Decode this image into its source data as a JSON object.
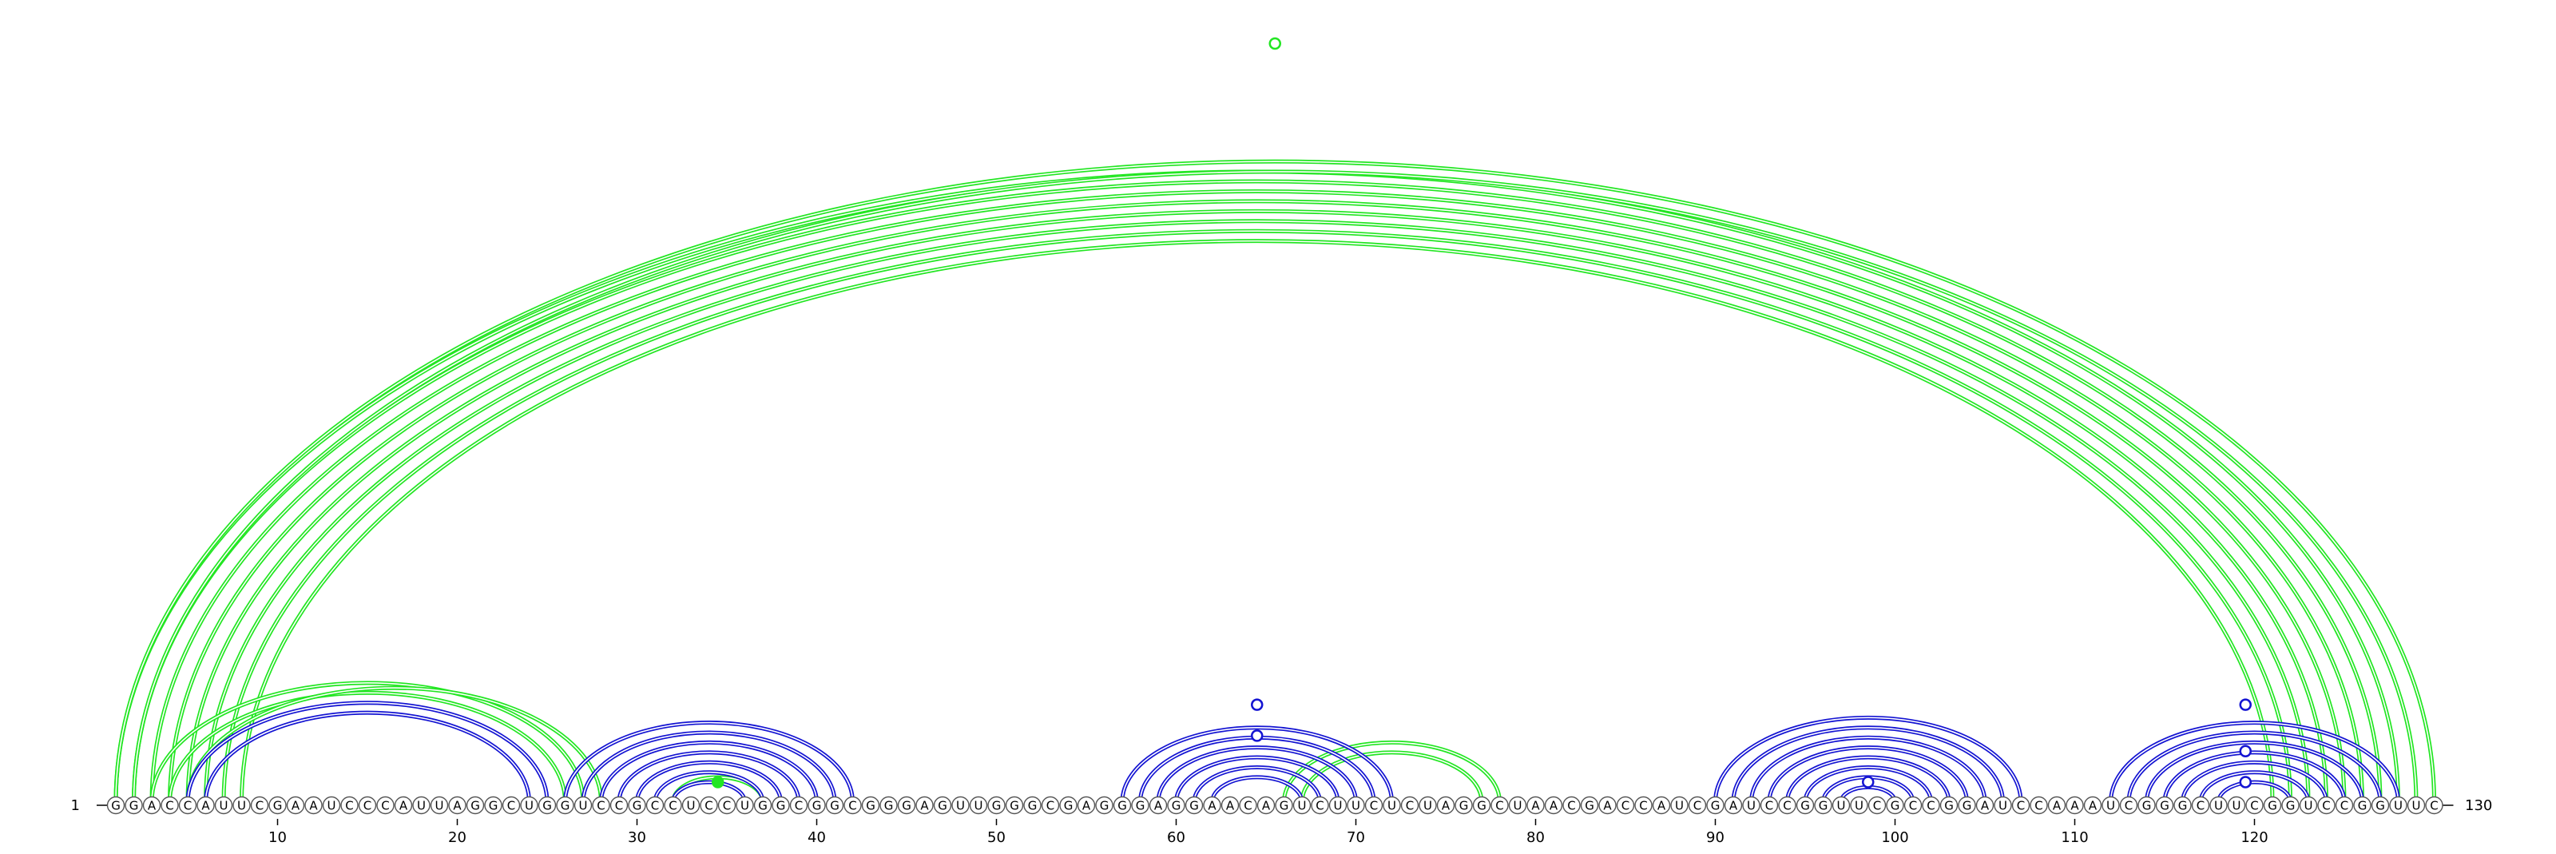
{
  "diagram": {
    "type": "rna-arc-diagram",
    "sequence": "GGACCAUUCGAAUCCCAUUAGGCUGGUCCGCCUCCUGGCGGCGGGAGUUGGGCGAGGGAGGAACAGUCUUCUCUAGGCUAACGACCAUCGAUCCGGUUCGCCGGAUCCAAAUCGGGCUUCGGUCCGGUUC",
    "start_label": "1",
    "end_label": "130",
    "ruler_ticks": [
      10,
      20,
      30,
      40,
      50,
      60,
      70,
      80,
      90,
      100,
      110,
      120
    ],
    "colors": {
      "structure_a": "#1414d2",
      "structure_b": "#22e622",
      "text": "#000000",
      "nucleotide_fill": "#ffffff",
      "nucleotide_stroke": "#555555"
    },
    "arc_groups": [
      {
        "structure": "b",
        "pairs": [
          [
            1,
            128
          ],
          [
            2,
            127
          ],
          [
            3,
            126
          ],
          [
            4,
            125
          ],
          [
            5,
            124
          ],
          [
            6,
            123
          ],
          [
            7,
            122
          ],
          [
            8,
            121
          ]
        ]
      },
      {
        "structure": "b",
        "pairs": [
          [
            1,
            130
          ],
          [
            2,
            129
          ]
        ]
      },
      {
        "structure": "a",
        "pairs": [
          [
            5,
            25
          ],
          [
            6,
            24
          ]
        ]
      },
      {
        "structure": "b",
        "pairs": [
          [
            3,
            27
          ],
          [
            4,
            26
          ],
          [
            5,
            28
          ]
        ]
      },
      {
        "structure": "a",
        "pairs": [
          [
            26,
            42
          ],
          [
            27,
            41
          ],
          [
            28,
            40
          ],
          [
            29,
            39
          ],
          [
            30,
            38
          ],
          [
            31,
            37
          ],
          [
            32,
            36
          ]
        ]
      },
      {
        "structure": "b",
        "pairs": [
          [
            32,
            37
          ]
        ]
      },
      {
        "structure": "a",
        "pairs": [
          [
            57,
            72
          ],
          [
            58,
            71
          ],
          [
            59,
            70
          ],
          [
            60,
            69
          ],
          [
            61,
            68
          ],
          [
            62,
            67
          ]
        ]
      },
      {
        "structure": "b",
        "pairs": [
          [
            66,
            78
          ],
          [
            67,
            77
          ]
        ]
      },
      {
        "structure": "a",
        "pairs": [
          [
            90,
            107
          ],
          [
            91,
            106
          ],
          [
            92,
            105
          ],
          [
            93,
            104
          ],
          [
            94,
            103
          ],
          [
            95,
            102
          ],
          [
            96,
            101
          ],
          [
            97,
            100
          ]
        ]
      },
      {
        "structure": "a",
        "pairs": [
          [
            112,
            128
          ],
          [
            113,
            127
          ],
          [
            114,
            126
          ],
          [
            115,
            125
          ],
          [
            116,
            124
          ],
          [
            117,
            123
          ],
          [
            118,
            122
          ]
        ]
      }
    ],
    "markers": [
      {
        "structure": "b",
        "at": 65.5,
        "y_fraction": 0.985,
        "filled": false
      },
      {
        "structure": "b",
        "at": 34.5,
        "y_fraction": 0.03,
        "filled": true
      },
      {
        "structure": "a",
        "at": 64.5,
        "y_fraction": 0.13,
        "filled": false
      },
      {
        "structure": "a",
        "at": 64.5,
        "y_fraction": 0.09,
        "filled": false
      },
      {
        "structure": "a",
        "at": 98.5,
        "y_fraction": 0.03,
        "filled": false
      },
      {
        "structure": "a",
        "at": 119.5,
        "y_fraction": 0.13,
        "filled": false
      },
      {
        "structure": "a",
        "at": 119.5,
        "y_fraction": 0.07,
        "filled": false
      },
      {
        "structure": "a",
        "at": 119.5,
        "y_fraction": 0.03,
        "filled": false
      }
    ]
  }
}
